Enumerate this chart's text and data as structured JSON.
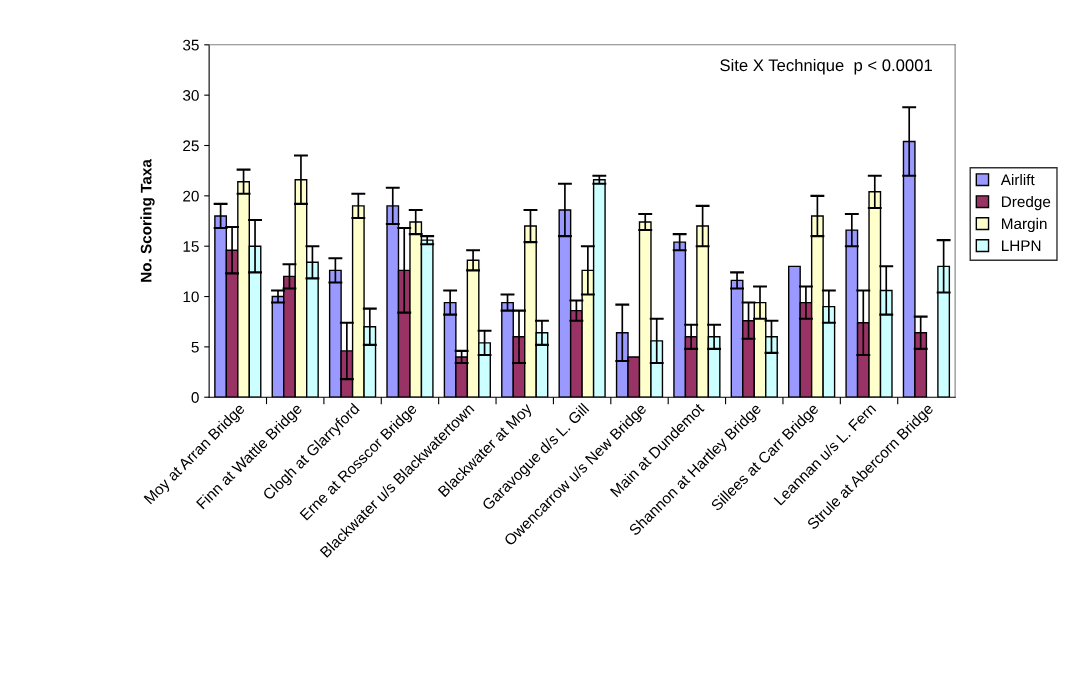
{
  "chart_data": {
    "type": "bar",
    "ylabel": "No. Scoring Taxa",
    "categories": [
      "Moy at Arran Bridge",
      "Finn at Wattle Bridge",
      "Clogh at Glarryford",
      "Erne at Rosscor Bridge",
      "Blackwater u/s Blackwatertown",
      "Blackwater at Moy",
      "Garavogue d/s L. Gill",
      "Owencarrow u/s New Bridge",
      "Main at Dundemot",
      "Shannon at Hartley Bridge",
      "Sillees at Carr Bridge",
      "Leannan u/s L. Fern",
      "Strule at Abercorn Bridge"
    ],
    "series": [
      {
        "name": "Airlift",
        "color": "#9999ff",
        "values": [
          18,
          10,
          12.6,
          19,
          9.4,
          9.4,
          18.6,
          6.4,
          15.4,
          11.6,
          13,
          16.6,
          25.4
        ],
        "errors": [
          1.2,
          0.6,
          1.2,
          1.8,
          1.2,
          0.8,
          2.6,
          2.8,
          0.8,
          0.8,
          null,
          1.6,
          3.4
        ]
      },
      {
        "name": "Dredge",
        "color": "#993366",
        "values": [
          14.6,
          12,
          4.6,
          12.6,
          4,
          6,
          8.6,
          4,
          6,
          7.6,
          9.4,
          7.4,
          6.4
        ],
        "errors": [
          2.3,
          1.2,
          2.8,
          4.2,
          0.6,
          2.6,
          1,
          null,
          1.2,
          1.8,
          1.6,
          3.2,
          1.6
        ]
      },
      {
        "name": "Margin",
        "color": "#ffffcc",
        "values": [
          21.4,
          21.6,
          19,
          17.4,
          13.6,
          17,
          12.6,
          17.4,
          17,
          9.4,
          18,
          20.4,
          null
        ],
        "errors": [
          1.2,
          2.4,
          1.2,
          1.2,
          1,
          1.6,
          2.4,
          0.8,
          2,
          1.6,
          2,
          1.6,
          null
        ]
      },
      {
        "name": "LHPN",
        "color": "#ccffff",
        "values": [
          15,
          13.4,
          7,
          15.6,
          5.4,
          6.4,
          21.6,
          5.6,
          6,
          6,
          9,
          10.6,
          13
        ],
        "errors": [
          2.6,
          1.6,
          1.8,
          0.4,
          1.2,
          1.2,
          0.4,
          2.2,
          1.2,
          1.6,
          1.6,
          2.4,
          2.6
        ]
      }
    ],
    "ylim": [
      0,
      35
    ],
    "yticks": [
      0,
      5,
      10,
      15,
      20,
      25,
      30,
      35
    ],
    "annotations": [
      "Site X Technique  p < 0.0001"
    ],
    "legend": "right",
    "grid": false
  }
}
